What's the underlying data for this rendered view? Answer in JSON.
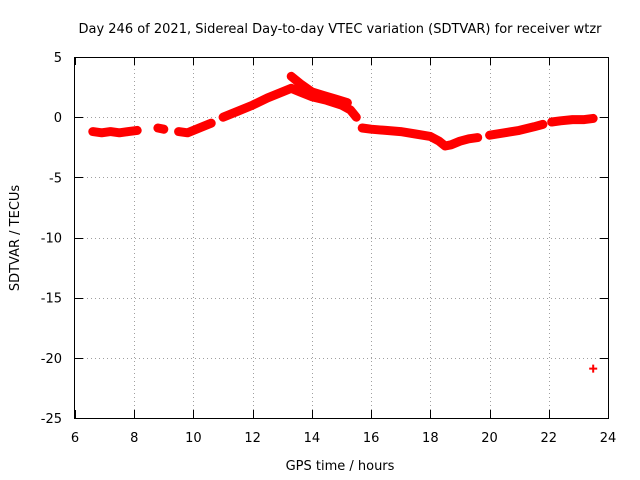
{
  "chart_data": {
    "type": "scatter",
    "title": "Day 246 of 2021, Sidereal Day-to-day VTEC variation (SDTVAR) for receiver wtzr",
    "xlabel": "GPS time / hours",
    "ylabel": "SDTVAR / TECUs",
    "xlim": [
      6,
      24
    ],
    "ylim": [
      -25,
      5
    ],
    "xticks": [
      6,
      8,
      10,
      12,
      14,
      16,
      18,
      20,
      22,
      24
    ],
    "yticks": [
      -25,
      -20,
      -15,
      -10,
      -5,
      0,
      5
    ],
    "grid": true,
    "marker": "+",
    "series": [
      {
        "name": "SDTVAR",
        "color": "#ff0000",
        "segments": [
          [
            [
              6.6,
              -1.2
            ],
            [
              6.9,
              -1.3
            ],
            [
              7.2,
              -1.2
            ],
            [
              7.5,
              -1.3
            ],
            [
              7.8,
              -1.2
            ],
            [
              8.1,
              -1.1
            ]
          ],
          [
            [
              8.8,
              -0.9
            ],
            [
              9.0,
              -1.0
            ]
          ],
          [
            [
              9.5,
              -1.2
            ],
            [
              9.8,
              -1.3
            ],
            [
              10.1,
              -1.0
            ],
            [
              10.4,
              -0.7
            ],
            [
              10.6,
              -0.5
            ]
          ],
          [
            [
              11.0,
              0.0
            ],
            [
              11.5,
              0.5
            ],
            [
              12.0,
              1.0
            ],
            [
              12.5,
              1.6
            ],
            [
              13.0,
              2.1
            ],
            [
              13.3,
              2.4
            ],
            [
              13.6,
              2.1
            ],
            [
              14.0,
              1.7
            ],
            [
              14.5,
              1.4
            ],
            [
              15.0,
              1.0
            ],
            [
              15.3,
              0.6
            ],
            [
              15.5,
              0.0
            ]
          ],
          [
            [
              13.3,
              3.4
            ],
            [
              13.6,
              2.8
            ],
            [
              14.0,
              2.1
            ],
            [
              14.4,
              1.8
            ],
            [
              14.8,
              1.5
            ],
            [
              15.2,
              1.2
            ]
          ],
          [
            [
              15.7,
              -0.9
            ],
            [
              16.0,
              -1.0
            ],
            [
              16.5,
              -1.1
            ],
            [
              17.0,
              -1.2
            ],
            [
              17.5,
              -1.4
            ],
            [
              18.0,
              -1.6
            ],
            [
              18.3,
              -2.0
            ],
            [
              18.5,
              -2.4
            ],
            [
              18.7,
              -2.3
            ],
            [
              19.0,
              -2.0
            ],
            [
              19.3,
              -1.8
            ],
            [
              19.6,
              -1.7
            ]
          ],
          [
            [
              20.0,
              -1.5
            ],
            [
              20.5,
              -1.3
            ],
            [
              21.0,
              -1.1
            ],
            [
              21.5,
              -0.8
            ],
            [
              21.8,
              -0.6
            ]
          ],
          [
            [
              22.1,
              -0.4
            ],
            [
              22.4,
              -0.3
            ],
            [
              22.8,
              -0.2
            ],
            [
              23.2,
              -0.2
            ],
            [
              23.5,
              -0.1
            ]
          ],
          [
            [
              23.5,
              -20.9
            ]
          ]
        ]
      }
    ]
  }
}
